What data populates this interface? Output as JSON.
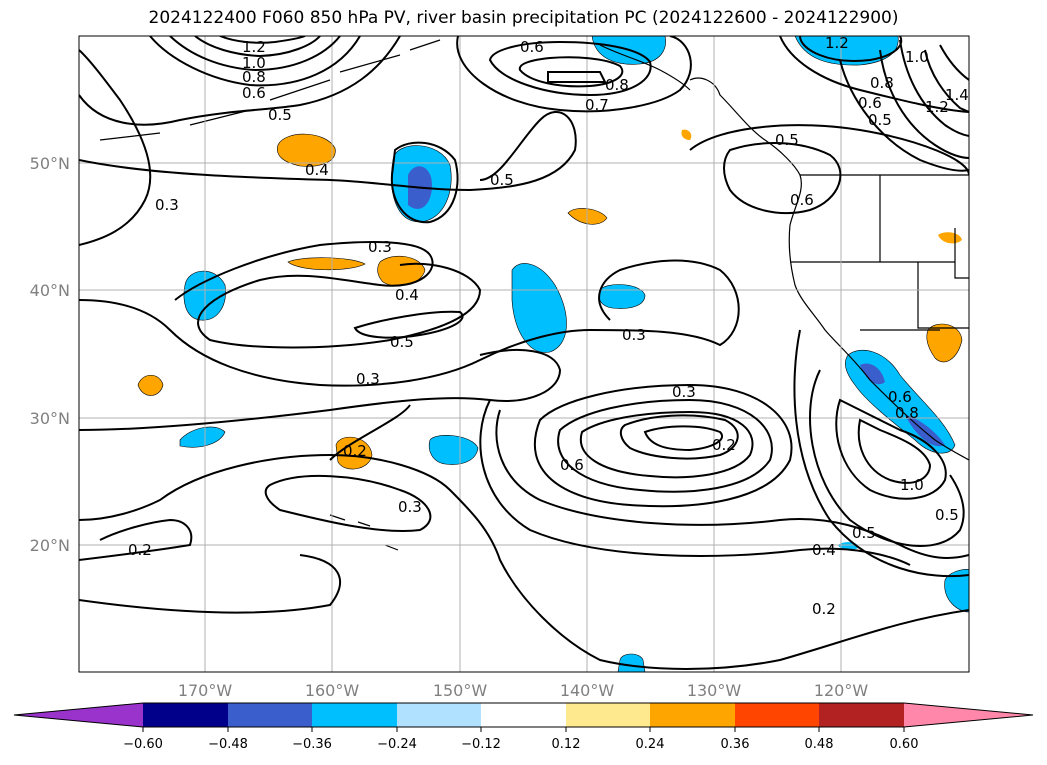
{
  "title": "2024122400 F060 850 hPa PV, river basin precipitation PC (2024122600 - 2024122900)",
  "map_data": {
    "type": "map",
    "region": "North-east Pacific",
    "grid": true,
    "lat_labels": [
      "50°N",
      "40°N",
      "30°N",
      "20°N"
    ],
    "lon_labels": [
      "170°W",
      "160°W",
      "150°W",
      "140°W",
      "130°W",
      "120°W"
    ],
    "contour_labels": [
      "1.2",
      "1.0",
      "0.8",
      "0.6",
      "0.5",
      "0.6",
      "0.7",
      "0.8",
      "1.2",
      "1.0",
      "0.8",
      "0.6",
      "0.5",
      "1.2",
      "1.4",
      "0.4",
      "0.3",
      "0.5",
      "0.5",
      "0.6",
      "0.3",
      "0.4",
      "0.5",
      "0.3",
      "0.3",
      "0.3",
      "0.6",
      "0.2",
      "0.2",
      "0.3",
      "0.2",
      "0.4",
      "0.5",
      "0.2",
      "1.0",
      "0.5",
      "0.6",
      "0.8"
    ],
    "colorbar": {
      "ticks": [
        "−0.60",
        "−0.48",
        "−0.36",
        "−0.24",
        "−0.12",
        "0.12",
        "0.24",
        "0.36",
        "0.48",
        "0.60"
      ],
      "colors": [
        "#9933cc",
        "#00008b",
        "#3a5fcd",
        "#00bfff",
        "#b0e2ff",
        "#ffffff",
        "#ffe98f",
        "#ffa500",
        "#ff4500",
        "#b22222",
        "#ff88aa"
      ],
      "extend": "both"
    }
  }
}
